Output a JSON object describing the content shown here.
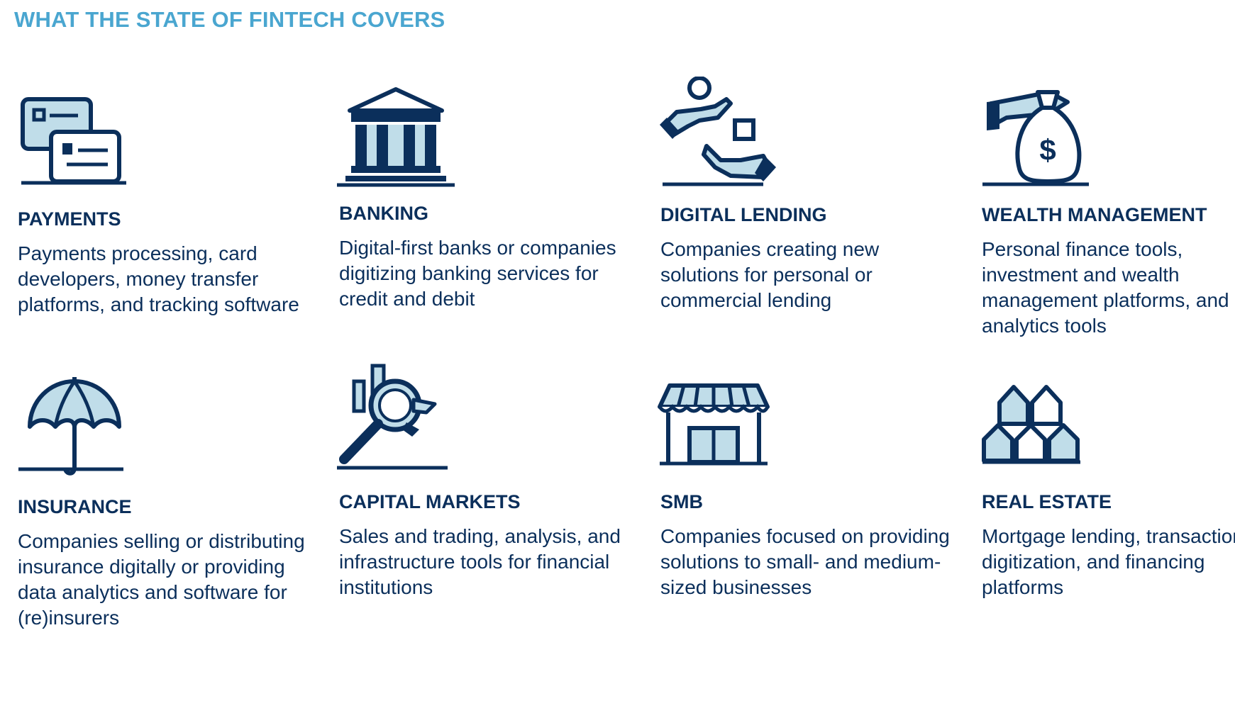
{
  "title": "WHAT THE STATE OF FINTECH COVERS",
  "colors": {
    "title": "#4aa6d0",
    "navy": "#0b2f5b",
    "light_blue": "#c0dde9",
    "text": "#0b2f5b"
  },
  "categories": [
    {
      "icon": "credit-cards-icon",
      "heading": "PAYMENTS",
      "description": "Payments processing, card developers, money transfer platforms, and tracking software"
    },
    {
      "icon": "bank-building-icon",
      "heading": "BANKING",
      "description": "Digital-first banks or companies digitizing banking services for credit and debit"
    },
    {
      "icon": "hands-exchange-icon",
      "heading": "DIGITAL LENDING",
      "description": "Companies creating new solutions for personal or commercial lending"
    },
    {
      "icon": "money-bag-icon",
      "heading": "WEALTH MANAGEMENT",
      "description": "Personal finance tools, investment and wealth management platforms, and analytics tools"
    },
    {
      "icon": "umbrella-icon",
      "heading": "INSURANCE",
      "description": "Companies selling or distributing insurance digitally or providing data analytics and software for (re)insurers"
    },
    {
      "icon": "magnifier-chart-icon",
      "heading": "CAPITAL MARKETS",
      "description": "Sales and trading, analysis, and infrastructure tools for financial institutions"
    },
    {
      "icon": "storefront-icon",
      "heading": "SMB",
      "description": "Companies focused on providing solutions to small- and medium-sized businesses"
    },
    {
      "icon": "houses-icon",
      "heading": "REAL ESTATE",
      "description": "Mortgage lending, transaction digitization, and financing platforms"
    }
  ]
}
